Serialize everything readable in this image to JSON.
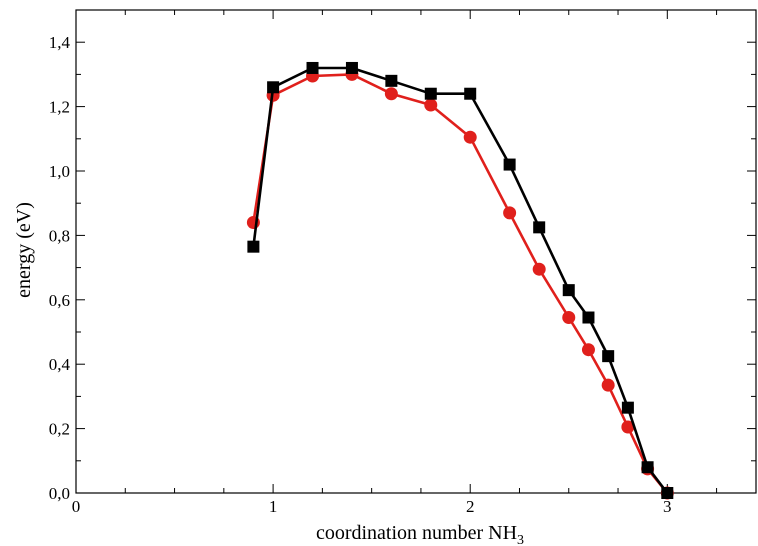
{
  "chart_data": {
    "type": "line",
    "title": "",
    "xlabel": "coordination number NH",
    "xlabel_subscript": "3",
    "ylabel": "energy (eV)",
    "xlim": [
      0,
      3.45
    ],
    "ylim": [
      0,
      1.5
    ],
    "x_ticks": [
      {
        "value": 0,
        "label": "0"
      },
      {
        "value": 1,
        "label": "1"
      },
      {
        "value": 2,
        "label": "2"
      },
      {
        "value": 3,
        "label": "3"
      }
    ],
    "y_ticks": [
      {
        "value": 0.0,
        "label": "0,0"
      },
      {
        "value": 0.2,
        "label": "0,2"
      },
      {
        "value": 0.4,
        "label": "0,4"
      },
      {
        "value": 0.6,
        "label": "0,6"
      },
      {
        "value": 0.8,
        "label": "0,8"
      },
      {
        "value": 1.0,
        "label": "1,0"
      },
      {
        "value": 1.2,
        "label": "1,2"
      },
      {
        "value": 1.4,
        "label": "1,4"
      }
    ],
    "grid": false,
    "legend": "none",
    "series": [
      {
        "color": "#e0201c",
        "marker": "circle",
        "points": [
          [
            0.9,
            0.84
          ],
          [
            1.0,
            1.235
          ],
          [
            1.2,
            1.295
          ],
          [
            1.4,
            1.3
          ],
          [
            1.6,
            1.24
          ],
          [
            1.8,
            1.205
          ],
          [
            2.0,
            1.105
          ],
          [
            2.2,
            0.87
          ],
          [
            2.35,
            0.695
          ],
          [
            2.5,
            0.545
          ],
          [
            2.6,
            0.445
          ],
          [
            2.7,
            0.335
          ],
          [
            2.8,
            0.205
          ],
          [
            2.9,
            0.075
          ],
          [
            3.0,
            0.0
          ]
        ]
      },
      {
        "color": "#000000",
        "marker": "square",
        "points": [
          [
            0.9,
            0.765
          ],
          [
            1.0,
            1.26
          ],
          [
            1.2,
            1.32
          ],
          [
            1.4,
            1.32
          ],
          [
            1.6,
            1.28
          ],
          [
            1.8,
            1.24
          ],
          [
            2.0,
            1.24
          ],
          [
            2.2,
            1.02
          ],
          [
            2.35,
            0.825
          ],
          [
            2.5,
            0.63
          ],
          [
            2.6,
            0.545
          ],
          [
            2.7,
            0.425
          ],
          [
            2.8,
            0.265
          ],
          [
            2.9,
            0.08
          ],
          [
            3.0,
            0.0
          ]
        ]
      }
    ]
  }
}
